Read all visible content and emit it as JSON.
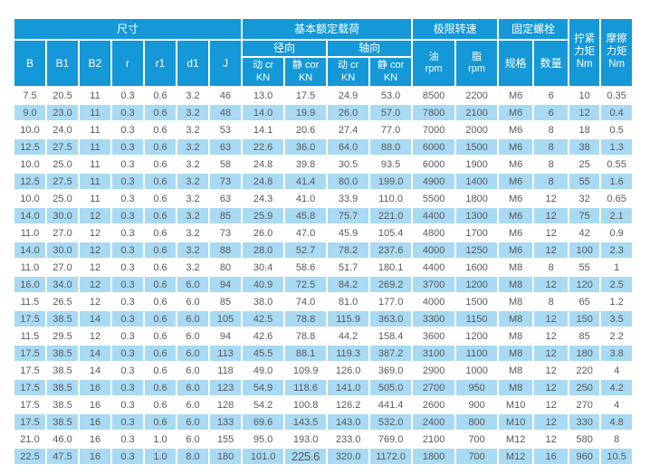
{
  "colors": {
    "header_blue": "#1598d7",
    "row_alt_blue": "#a9daf3",
    "text_dark": "#58595b",
    "background": "#ffffff"
  },
  "header": {
    "dims_group": "尺寸",
    "load_group": "基本额定载荷",
    "speed_group": "极限转速",
    "bolt_group": "固定螺栓",
    "tighten": "拧紧\n力矩\nNm",
    "friction": "摩擦\n力矩\nNm",
    "dim_cols": [
      "B",
      "B1",
      "B2",
      "r",
      "r1",
      "d1",
      "J"
    ],
    "radial": "径向",
    "axial": "轴向",
    "dyn": "动 cr\nKN",
    "stat": "静 cor\nKN",
    "oil": "油\nrpm",
    "grease": "脂\nrpm",
    "spec": "规格",
    "qty": "数量"
  },
  "rows": [
    [
      "7.5",
      "20.5",
      "11",
      "0.3",
      "0.6",
      "3.2",
      "46",
      "13.0",
      "17.5",
      "24.9",
      "53.0",
      "8500",
      "2200",
      "M6",
      "6",
      "10",
      "0.35"
    ],
    [
      "9.0",
      "23.0",
      "11",
      "0.3",
      "0.6",
      "3.2",
      "48",
      "14.0",
      "19.9",
      "26.0",
      "57.0",
      "7800",
      "2100",
      "M6",
      "6",
      "12",
      "0.4"
    ],
    [
      "10.0",
      "24.0",
      "11",
      "0.3",
      "0.6",
      "3.2",
      "53",
      "14.1",
      "20.6",
      "27.4",
      "77.0",
      "7000",
      "2000",
      "M6",
      "8",
      "18",
      "0.5"
    ],
    [
      "12.5",
      "27.5",
      "11",
      "0.3",
      "0.6",
      "3.2",
      "63",
      "22.6",
      "36.0",
      "64.0",
      "88.0",
      "6000",
      "1500",
      "M6",
      "8",
      "38",
      "1.3"
    ],
    [
      "10.0",
      "25.0",
      "11",
      "0.3",
      "0.6",
      "3.2",
      "58",
      "24.8",
      "39.8",
      "30.5",
      "93.5",
      "6000",
      "1900",
      "M6",
      "8",
      "25",
      "0.55"
    ],
    [
      "12.5",
      "27.5",
      "11",
      "0.3",
      "0.6",
      "3.2",
      "73",
      "24.8",
      "41.4",
      "80.0",
      "199.0",
      "4900",
      "1400",
      "M6",
      "8",
      "55",
      "1.6"
    ],
    [
      "10.0",
      "25.0",
      "11",
      "0.3",
      "0.6",
      "3.2",
      "63",
      "24.3",
      "41.0",
      "33.9",
      "110.0",
      "5500",
      "1800",
      "M6",
      "12",
      "32",
      "0.65"
    ],
    [
      "14.0",
      "30.0",
      "12",
      "0.3",
      "0.6",
      "3.2",
      "85",
      "25.9",
      "45.8",
      "75.7",
      "221.0",
      "4400",
      "1300",
      "M6",
      "12",
      "75",
      "2.1"
    ],
    [
      "11.0",
      "27.0",
      "12",
      "0.3",
      "0.6",
      "3.2",
      "73",
      "26.0",
      "47.0",
      "45.9",
      "105.4",
      "4800",
      "1700",
      "M6",
      "12",
      "42",
      "0.9"
    ],
    [
      "14.0",
      "30.0",
      "12",
      "0.3",
      "0.6",
      "3.2",
      "88",
      "28.0",
      "52.7",
      "78.2",
      "237.6",
      "4000",
      "1250",
      "M6",
      "12",
      "100",
      "2.3"
    ],
    [
      "11.0",
      "27.0",
      "12",
      "0.3",
      "0.6",
      "3.2",
      "80",
      "30.4",
      "58.6",
      "51.7",
      "180.1",
      "4400",
      "1600",
      "M8",
      "8",
      "55",
      "1"
    ],
    [
      "16.0",
      "34.0",
      "12",
      "0.3",
      "0.6",
      "6.0",
      "94",
      "40.9",
      "72.5",
      "84.2",
      "269.2",
      "3700",
      "1200",
      "M8",
      "12",
      "120",
      "2.5"
    ],
    [
      "11.5",
      "26.5",
      "12",
      "0.3",
      "0.6",
      "6.0",
      "85",
      "38.0",
      "74.0",
      "81.0",
      "177.0",
      "4000",
      "1500",
      "M8",
      "8",
      "65",
      "1.2"
    ],
    [
      "17.5",
      "38.5",
      "14",
      "0.3",
      "0.6",
      "6.0",
      "105",
      "42.5",
      "78.8",
      "115.9",
      "363.0",
      "3300",
      "1150",
      "M8",
      "12",
      "150",
      "3.5"
    ],
    [
      "11.5",
      "29.5",
      "12",
      "0.3",
      "0.6",
      "6.0",
      "94",
      "42.6",
      "78.8",
      "44.2",
      "158.4",
      "3600",
      "1200",
      "M8",
      "12",
      "85",
      "2.2"
    ],
    [
      "17.5",
      "38.5",
      "14",
      "0.3",
      "0.6",
      "6.0",
      "113",
      "45.5",
      "88.1",
      "119.3",
      "387.2",
      "3100",
      "1100",
      "M8",
      "12",
      "180",
      "3.8"
    ],
    [
      "17.5",
      "38.5",
      "14",
      "0.3",
      "0.6",
      "6.0",
      "118",
      "49.0",
      "109.9",
      "126.0",
      "369.0",
      "2900",
      "1000",
      "M8",
      "12",
      "220",
      "4"
    ],
    [
      "17.5",
      "38.5",
      "16",
      "0.3",
      "0.6",
      "6.0",
      "123",
      "54.9",
      "118.6",
      "141.0",
      "505.0",
      "2700",
      "950",
      "M8",
      "12",
      "250",
      "4.2"
    ],
    [
      "17.5",
      "38.5",
      "16",
      "0.3",
      "0.6",
      "6.0",
      "128",
      "54.2",
      "100.8",
      "126.2",
      "441.4",
      "2600",
      "900",
      "M10",
      "12",
      "270",
      "4"
    ],
    [
      "17.5",
      "38.5",
      "16",
      "0.3",
      "0.6",
      "6.0",
      "133",
      "69.6",
      "143.5",
      "143.0",
      "532.0",
      "2400",
      "800",
      "M10",
      "12",
      "330",
      "4.8"
    ],
    [
      "21.0",
      "46.0",
      "16",
      "0.3",
      "1.0",
      "6.0",
      "155",
      "95.0",
      "193.0",
      "233.0",
      "769.0",
      "2100",
      "700",
      "M12",
      "12",
      "580",
      "8"
    ],
    [
      "22.5",
      "47.5",
      "16",
      "0.3",
      "1.0",
      "8.0",
      "180",
      "101.0",
      "225.6",
      "320.0",
      "1172.0",
      "1800",
      "700",
      "M12",
      "16",
      "960",
      "10.5"
    ]
  ]
}
